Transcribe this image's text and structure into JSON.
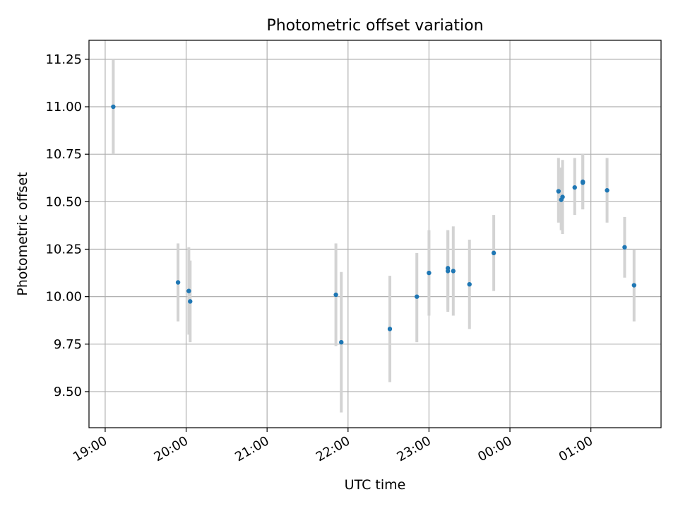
{
  "chart_data": {
    "type": "scatter",
    "title": "Photometric offset variation",
    "xlabel": "UTC time",
    "ylabel": "Photometric offset",
    "xlim": [
      "18:48",
      "01:52"
    ],
    "ylim": [
      9.31,
      11.35
    ],
    "grid": true,
    "x_ticks": [
      "19:00",
      "20:00",
      "21:00",
      "22:00",
      "23:00",
      "00:00",
      "01:00"
    ],
    "y_ticks": [
      "9.50",
      "9.75",
      "10.00",
      "10.25",
      "10.50",
      "10.75",
      "11.00",
      "11.25"
    ],
    "colors": {
      "point": "#1f77b4",
      "errorbar": "#d3d3d3",
      "grid": "#b0b0b0"
    },
    "points": [
      {
        "x": "19:06",
        "y": 11.0,
        "err_low": 10.75,
        "err_high": 11.25
      },
      {
        "x": "19:54",
        "y": 10.075,
        "err_low": 9.87,
        "err_high": 10.28
      },
      {
        "x": "20:02",
        "y": 10.03,
        "err_low": 9.8,
        "err_high": 10.26
      },
      {
        "x": "20:03",
        "y": 9.975,
        "err_low": 9.76,
        "err_high": 10.19
      },
      {
        "x": "21:51",
        "y": 10.01,
        "err_low": 9.74,
        "err_high": 10.28
      },
      {
        "x": "21:55",
        "y": 9.76,
        "err_low": 9.39,
        "err_high": 10.13
      },
      {
        "x": "22:31",
        "y": 9.83,
        "err_low": 9.55,
        "err_high": 10.11
      },
      {
        "x": "22:51",
        "y": 10.0,
        "err_low": 9.76,
        "err_high": 10.23
      },
      {
        "x": "23:00",
        "y": 10.125,
        "err_low": 9.9,
        "err_high": 10.35
      },
      {
        "x": "23:14",
        "y": 10.135,
        "err_low": 9.92,
        "err_high": 10.35
      },
      {
        "x": "23:14",
        "y": 10.15,
        "err_low": 9.93,
        "err_high": 10.35
      },
      {
        "x": "23:18",
        "y": 10.135,
        "err_low": 9.9,
        "err_high": 10.37
      },
      {
        "x": "23:30",
        "y": 10.065,
        "err_low": 9.83,
        "err_high": 10.3
      },
      {
        "x": "23:48",
        "y": 10.23,
        "err_low": 10.03,
        "err_high": 10.43
      },
      {
        "x": "00:36",
        "y": 10.555,
        "err_low": 10.39,
        "err_high": 10.73
      },
      {
        "x": "00:38",
        "y": 10.51,
        "err_low": 10.35,
        "err_high": 10.68
      },
      {
        "x": "00:39",
        "y": 10.525,
        "err_low": 10.33,
        "err_high": 10.72
      },
      {
        "x": "00:48",
        "y": 10.575,
        "err_low": 10.43,
        "err_high": 10.73
      },
      {
        "x": "00:54",
        "y": 10.6,
        "err_low": 10.46,
        "err_high": 10.75
      },
      {
        "x": "00:54",
        "y": 10.605,
        "err_low": 10.46,
        "err_high": 10.75
      },
      {
        "x": "01:12",
        "y": 10.56,
        "err_low": 10.39,
        "err_high": 10.73
      },
      {
        "x": "01:25",
        "y": 10.26,
        "err_low": 10.1,
        "err_high": 10.42
      },
      {
        "x": "01:32",
        "y": 10.06,
        "err_low": 9.87,
        "err_high": 10.25
      }
    ]
  }
}
